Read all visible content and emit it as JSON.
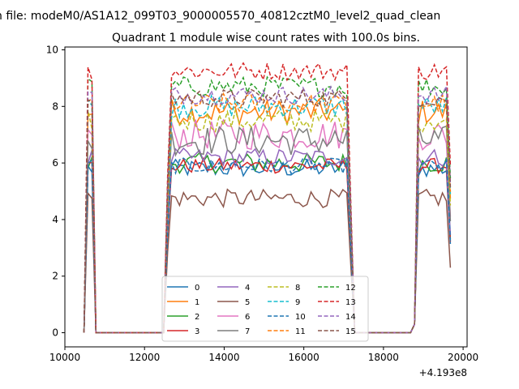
{
  "chart_data": {
    "type": "line",
    "suptitle": "n file: modeM0/AS1A12_099T03_9000005570_40812cztM0_level2_quad_clean",
    "title": "Quadrant 1 module wise count rates with 100.0s bins.",
    "xlabel": "",
    "ylabel": "",
    "x_offset_label": "+4.193e8",
    "xlim": [
      10000,
      20100
    ],
    "ylim": [
      -0.5,
      10.1
    ],
    "x_ticks": [
      10000,
      12000,
      14000,
      16000,
      18000,
      20000
    ],
    "x_tick_labels": [
      "10000",
      "12000",
      "14000",
      "16000",
      "18000",
      "20000"
    ],
    "y_ticks": [
      0,
      2,
      4,
      6,
      8,
      10
    ],
    "y_tick_labels": [
      "0",
      "2",
      "4",
      "6",
      "8",
      "10"
    ],
    "legend_placement": "lower-center",
    "legend_columns": 4,
    "gti_windows": [
      [
        10500,
        10700
      ],
      [
        12600,
        17150
      ],
      [
        18850,
        19650
      ]
    ],
    "series": [
      {
        "name": "0",
        "level": 5.8,
        "noise": 0.18,
        "color": "#1f77b4",
        "dash": "solid"
      },
      {
        "name": "1",
        "level": 7.8,
        "noise": 0.25,
        "color": "#ff7f0e",
        "dash": "solid"
      },
      {
        "name": "2",
        "level": 6.0,
        "noise": 0.2,
        "color": "#2ca02c",
        "dash": "solid"
      },
      {
        "name": "3",
        "level": 5.9,
        "noise": 0.15,
        "color": "#d62728",
        "dash": "solid"
      },
      {
        "name": "4",
        "level": 6.2,
        "noise": 0.18,
        "color": "#9467bd",
        "dash": "solid"
      },
      {
        "name": "5",
        "level": 4.75,
        "noise": 0.18,
        "color": "#8c564b",
        "dash": "solid"
      },
      {
        "name": "6",
        "level": 7.0,
        "noise": 0.3,
        "color": "#e377c2",
        "dash": "solid"
      },
      {
        "name": "7",
        "level": 6.8,
        "noise": 0.3,
        "color": "#7f7f7f",
        "dash": "solid"
      },
      {
        "name": "8",
        "level": 7.5,
        "noise": 0.22,
        "color": "#bcbd22",
        "dash": "dashed"
      },
      {
        "name": "9",
        "level": 8.0,
        "noise": 0.22,
        "color": "#17becf",
        "dash": "dashed"
      },
      {
        "name": "10",
        "level": 5.9,
        "noise": 0.15,
        "color": "#1f77b4",
        "dash": "dashed"
      },
      {
        "name": "11",
        "level": 8.1,
        "noise": 0.2,
        "color": "#ff7f0e",
        "dash": "dashed"
      },
      {
        "name": "12",
        "level": 8.7,
        "noise": 0.2,
        "color": "#2ca02c",
        "dash": "dashed"
      },
      {
        "name": "13",
        "level": 9.25,
        "noise": 0.18,
        "color": "#d62728",
        "dash": "dashed"
      },
      {
        "name": "14",
        "level": 8.4,
        "noise": 0.18,
        "color": "#9467bd",
        "dash": "dashed"
      },
      {
        "name": "15",
        "level": 8.3,
        "noise": 0.18,
        "color": "#8c564b",
        "dash": "dashed"
      }
    ]
  }
}
